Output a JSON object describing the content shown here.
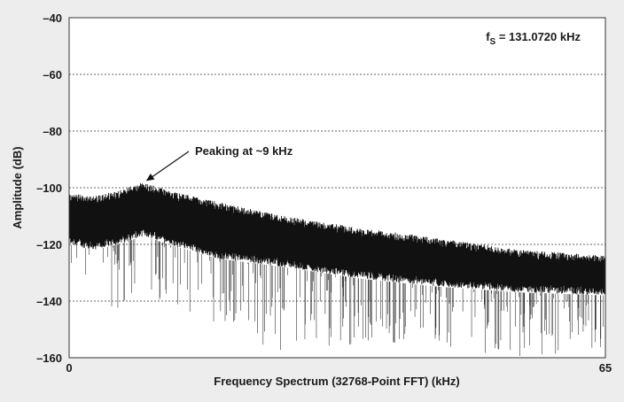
{
  "chart_data": {
    "type": "line",
    "xlabel": "Frequency Spectrum (32768-Point FFT) (kHz)",
    "ylabel": "Amplitude (dB)",
    "xlim": [
      0,
      65
    ],
    "ylim": [
      -160,
      -40
    ],
    "x_ticks": [
      0,
      65
    ],
    "y_ticks": [
      -40,
      -60,
      -80,
      -100,
      -120,
      -140,
      -160
    ],
    "x_tick_labels": [
      "0",
      "65"
    ],
    "y_tick_labels": [
      "–40",
      "–60",
      "–80",
      "–100",
      "–120",
      "–140",
      "–160"
    ],
    "grid": "horizontal-dashed",
    "annotation": {
      "text": "Peaking at ~9 kHz",
      "x": 9,
      "y": -97
    },
    "fs_label": {
      "prefix": "f",
      "subscript": "S",
      "text": " = 131.0720 kHz"
    },
    "envelope": {
      "x": [
        0,
        3,
        6,
        9,
        12,
        18,
        26,
        35,
        45,
        55,
        65
      ],
      "upper": [
        -102,
        -103,
        -101,
        -98,
        -101,
        -105,
        -110,
        -114,
        -118,
        -122,
        -124
      ],
      "lower": [
        -120,
        -122,
        -120,
        -117,
        -120,
        -125,
        -128,
        -132,
        -135,
        -137,
        -138
      ],
      "min_spikes": [
        -133,
        -140,
        -145,
        -140,
        -142,
        -150,
        -158,
        -156,
        -157,
        -160,
        -158
      ]
    },
    "colors": {
      "plot_bg": "#ffffff",
      "page_bg": "#ededed",
      "trace": "#111111",
      "grid": "#666666"
    }
  }
}
